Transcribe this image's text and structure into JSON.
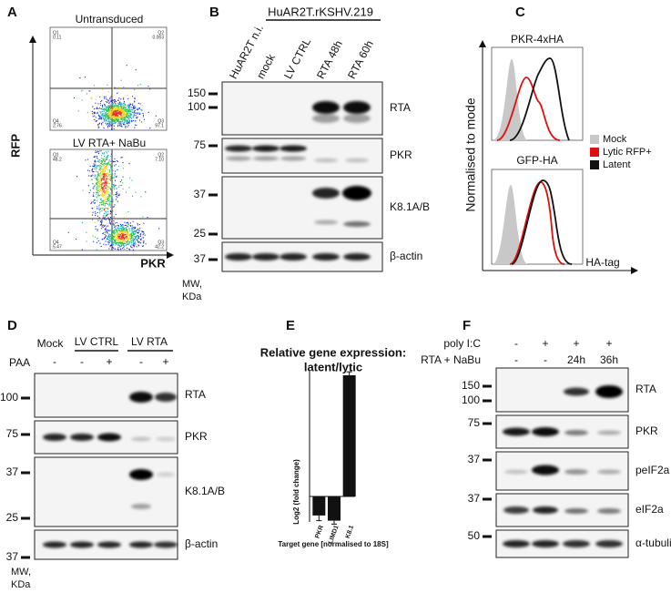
{
  "panels": {
    "A": {
      "label": "A",
      "plot_titles": [
        "Untransduced",
        "LV RTA+ NaBu"
      ],
      "y_label": "RFP",
      "x_label": "PKR",
      "quadrants": [
        [
          "Q1",
          "0.11",
          "Q2",
          "0.063",
          "Q4",
          "2.76",
          "Q3",
          "97.1"
        ],
        [
          "Q1",
          "48.2",
          "Q2",
          "7.10",
          "Q4",
          "5.47",
          "Q3",
          "42.2"
        ]
      ]
    },
    "B": {
      "label": "B",
      "group_label": "HuAR2T.rKSHV.219",
      "lanes": [
        "HuAR2T n.i.",
        "mock",
        "LV CTRL",
        "RTA 48h",
        "RTA 60h"
      ],
      "blots": [
        "RTA",
        "PKR",
        "K8.1A/B",
        "β-actin"
      ],
      "mw": [
        "150",
        "100",
        "75",
        "37",
        "25",
        "37"
      ],
      "mw_unit": [
        "MW,",
        "KDa"
      ]
    },
    "C": {
      "label": "C",
      "plot_titles": [
        "PKR-4xHA",
        "GFP-HA"
      ],
      "y_label": "Normalised to mode",
      "x_label": "HA-tag",
      "legend": [
        "Mock",
        "Lytic RFP+",
        "Latent"
      ]
    },
    "D": {
      "label": "D",
      "lanes": [
        "Mock",
        "LV CTRL",
        "LV RTA"
      ],
      "paa_label": "PAA",
      "paa": [
        "-",
        "-",
        "+",
        "-",
        "+"
      ],
      "blots": [
        "RTA",
        "PKR",
        "K8.1A/B",
        "β-actin"
      ],
      "mw": [
        "100",
        "75",
        "37",
        "25",
        "37"
      ],
      "mw_unit": [
        "MW,",
        "KDa"
      ]
    },
    "E": {
      "label": "E"
    },
    "F": {
      "label": "F",
      "row_labels": [
        "poly I:C",
        "RTA + NaBu"
      ],
      "poly": [
        "-",
        "+",
        "+",
        "+"
      ],
      "rta": [
        "-",
        "-",
        "24h",
        "36h"
      ],
      "blots": [
        "RTA",
        "PKR",
        "peIF2a",
        "eIF2a",
        "α-tubulin"
      ],
      "mw": [
        "150",
        "100",
        "75",
        "37",
        "37",
        "50"
      ]
    }
  },
  "chart_data": {
    "type": "bar",
    "title": [
      "Relative gene expression:",
      "latent/lytic"
    ],
    "y_label": "Log2 (fold change)",
    "x_label": "Target gene [normalised to 18S]",
    "categories": [
      "PKR",
      "LIMD1",
      "K8.1"
    ],
    "values": [
      -2.2,
      -2.8,
      14
    ],
    "errors": [
      0.6,
      0.4,
      0.4
    ],
    "color": "#111111",
    "ylim": [
      -4,
      16
    ]
  }
}
